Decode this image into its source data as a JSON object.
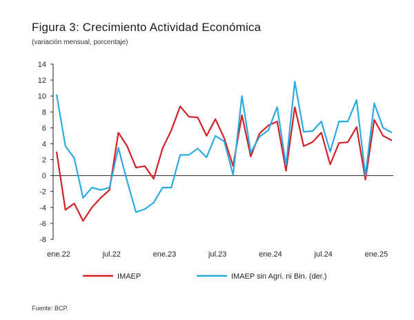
{
  "chart_data": {
    "type": "line",
    "title": "Figura 3: Crecimiento Actividad Económica",
    "subtitle": "(variación mensual, porcentaje)",
    "source": "Fuente: BCP.",
    "x": [
      "ene.22",
      "feb.22",
      "mar.22",
      "abr.22",
      "may.22",
      "jun.22",
      "jul.22",
      "ago.22",
      "sep.22",
      "oct.22",
      "nov.22",
      "dic.22",
      "ene.23",
      "feb.23",
      "mar.23",
      "abr.23",
      "may.23",
      "jun.23",
      "jul.23",
      "ago.23",
      "sep.23",
      "oct.23",
      "nov.23",
      "dic.23",
      "ene.24",
      "feb.24",
      "mar.24",
      "abr.24",
      "may.24",
      "jun.24",
      "jul.24",
      "ago.24",
      "sep.24",
      "oct.24",
      "nov.24",
      "dic.24",
      "ene.25",
      "feb.25",
      "mar.25"
    ],
    "x_tick_labels": [
      "ene.22",
      "jul.22",
      "ene.23",
      "jul.23",
      "ene.24",
      "jul.24",
      "ene.25"
    ],
    "ylim": [
      -8,
      14
    ],
    "yticks": [
      -8,
      -6,
      -4,
      -2,
      0,
      2,
      4,
      6,
      8,
      10,
      12,
      14
    ],
    "grid": false,
    "legend_position": "bottom",
    "series": [
      {
        "name": "IMAEP",
        "color": "#d42027",
        "values": [
          3.0,
          -4.3,
          -3.5,
          -5.7,
          -4.0,
          -2.8,
          -1.8,
          5.4,
          3.7,
          1.0,
          1.2,
          -0.4,
          3.4,
          5.7,
          8.7,
          7.4,
          7.3,
          5.0,
          7.1,
          4.7,
          1.2,
          7.6,
          2.4,
          5.3,
          6.3,
          6.8,
          0.6,
          8.6,
          3.7,
          4.2,
          5.4,
          1.4,
          4.1,
          4.2,
          6.1,
          -0.5,
          7.0,
          5.0,
          4.4
        ]
      },
      {
        "name": "IMAEP sin Agri. ni Bin.  (der.)",
        "color": "#29abe2",
        "values": [
          10.2,
          3.7,
          2.2,
          -2.8,
          -1.5,
          -1.8,
          -1.5,
          3.5,
          -0.7,
          -4.6,
          -4.2,
          -3.4,
          -1.5,
          -1.5,
          2.6,
          2.6,
          3.4,
          2.3,
          5.0,
          4.3,
          0.1,
          10.0,
          2.9,
          4.9,
          5.7,
          8.6,
          1.3,
          11.8,
          5.5,
          5.6,
          6.8,
          3.0,
          6.8,
          6.8,
          9.5,
          0.0,
          9.1,
          6.0,
          5.4
        ]
      }
    ]
  }
}
